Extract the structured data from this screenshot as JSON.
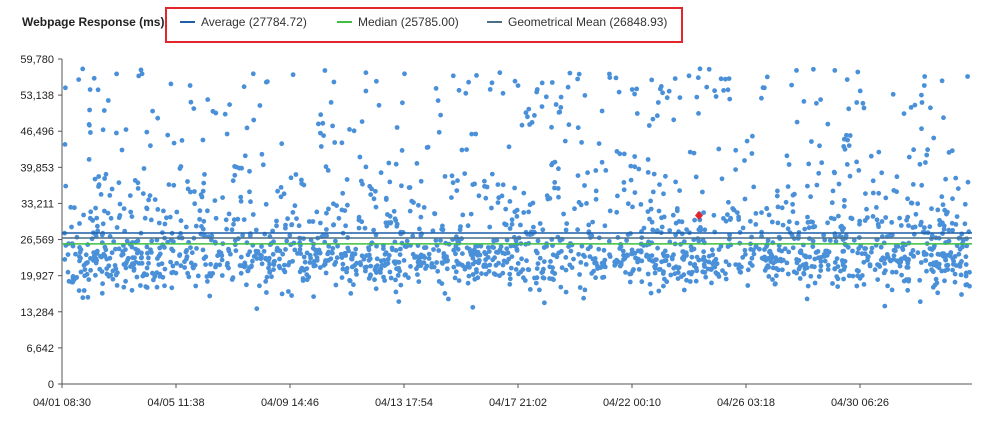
{
  "chart_data": {
    "type": "scatter",
    "title": "Webpage Response (ms):",
    "ylim": [
      0,
      59780
    ],
    "yticks": [
      "0",
      "6,642",
      "13,284",
      "19,927",
      "26,569",
      "33,211",
      "39,853",
      "46,496",
      "53,138",
      "59,780"
    ],
    "ytick_values": [
      0,
      6642,
      13284,
      19927,
      26569,
      33211,
      39853,
      46496,
      53138,
      59780
    ],
    "xticks": [
      "04/01 08:30",
      "04/05 11:38",
      "04/09 14:46",
      "04/13 17:54",
      "04/17 21:02",
      "04/22 00:10",
      "04/26 03:18",
      "04/30 06:26"
    ],
    "xlim": [
      "04/01 08:30",
      "05/02 12:00"
    ],
    "grid": false,
    "legend_placement": "top",
    "point_color": "#4a90d9",
    "highlight_point": {
      "x_fraction": 0.7,
      "y": 31000,
      "color": "#e3262b"
    },
    "series_points_approx": 2000,
    "reference_lines": [
      {
        "name": "Average (27784.72)",
        "value": 27784.72,
        "color": "#1f5fa8"
      },
      {
        "name": "Median (25785.00)",
        "value": 25785.0,
        "color": "#3fbf3f"
      },
      {
        "name": "Geometrical Mean (26848.93)",
        "value": 26848.93,
        "color": "#4a6f86"
      }
    ]
  }
}
